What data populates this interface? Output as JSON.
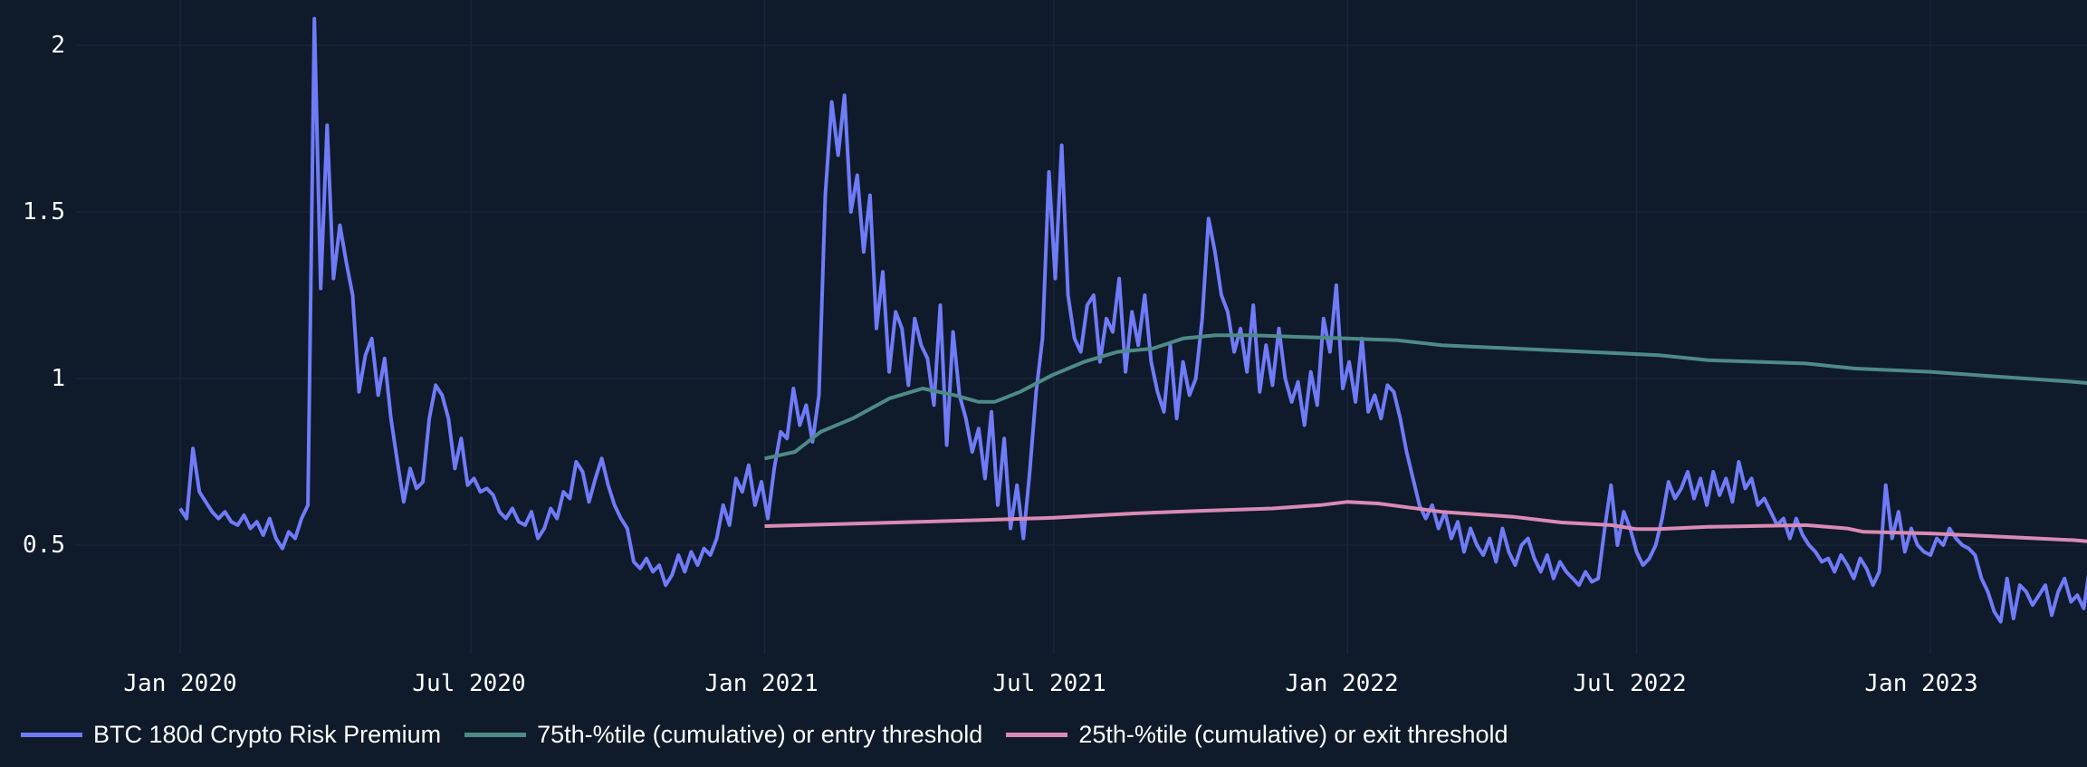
{
  "colors": {
    "background": "#0f1a2b",
    "grid": "#1a2638",
    "series_main": "#6f7bf7",
    "series_entry": "#4e8a86",
    "series_exit": "#d98bb5",
    "text": "#ffffff"
  },
  "legend": {
    "items": [
      {
        "label": "BTC 180d Crypto Risk Premium",
        "color": "#6f7bf7"
      },
      {
        "label": "75th-%tile (cumulative) or entry threshold",
        "color": "#4e8a86"
      },
      {
        "label": "25th-%tile (cumulative) or exit threshold",
        "color": "#d98bb5"
      }
    ]
  },
  "axes": {
    "y_ticks": [
      "2",
      "1.5",
      "1",
      "0.5"
    ],
    "x_ticks": [
      "Jan 2020",
      "Jul 2020",
      "Jan 2021",
      "Jul 2021",
      "Jan 2022",
      "Jul 2022",
      "Jan 2023"
    ]
  },
  "chart_data": {
    "type": "line",
    "title": "",
    "xlabel": "",
    "ylabel": "",
    "ylim": [
      0.16,
      2.13
    ],
    "xlim": [
      "2019-11-05",
      "2023-05-01"
    ],
    "grid": true,
    "legend_position": "bottom-left",
    "y_ticks": [
      0.5,
      1,
      1.5,
      2
    ],
    "x_ticks": [
      "2020-01-01",
      "2020-07-01",
      "2021-01-01",
      "2021-07-01",
      "2022-01-01",
      "2022-07-01",
      "2023-01-01"
    ],
    "series": [
      {
        "name": "BTC 180d Crypto Risk Premium",
        "x_start": "2020-01-01",
        "step_days": 4,
        "values": [
          0.61,
          0.58,
          0.79,
          0.66,
          0.63,
          0.6,
          0.58,
          0.6,
          0.57,
          0.56,
          0.59,
          0.55,
          0.57,
          0.53,
          0.58,
          0.52,
          0.49,
          0.54,
          0.52,
          0.58,
          0.62,
          2.08,
          1.27,
          1.76,
          1.3,
          1.46,
          1.35,
          1.25,
          0.96,
          1.07,
          1.12,
          0.95,
          1.06,
          0.88,
          0.75,
          0.63,
          0.73,
          0.67,
          0.69,
          0.88,
          0.98,
          0.95,
          0.88,
          0.73,
          0.82,
          0.68,
          0.7,
          0.66,
          0.67,
          0.65,
          0.6,
          0.58,
          0.61,
          0.57,
          0.56,
          0.6,
          0.52,
          0.55,
          0.61,
          0.58,
          0.66,
          0.64,
          0.75,
          0.72,
          0.63,
          0.7,
          0.76,
          0.68,
          0.62,
          0.58,
          0.55,
          0.45,
          0.43,
          0.46,
          0.42,
          0.44,
          0.38,
          0.41,
          0.47,
          0.42,
          0.48,
          0.44,
          0.49,
          0.47,
          0.52,
          0.62,
          0.56,
          0.7,
          0.66,
          0.74,
          0.62,
          0.69,
          0.58,
          0.73,
          0.84,
          0.82,
          0.97,
          0.86,
          0.92,
          0.81,
          0.95,
          1.55,
          1.83,
          1.67,
          1.85,
          1.5,
          1.61,
          1.38,
          1.55,
          1.15,
          1.32,
          1.02,
          1.2,
          1.15,
          0.98,
          1.18,
          1.1,
          1.06,
          0.92,
          1.22,
          0.8,
          1.14,
          0.95,
          0.88,
          0.78,
          0.85,
          0.7,
          0.9,
          0.62,
          0.82,
          0.55,
          0.68,
          0.52,
          0.72,
          0.96,
          1.12,
          1.62,
          1.3,
          1.7,
          1.25,
          1.12,
          1.08,
          1.22,
          1.25,
          1.05,
          1.18,
          1.14,
          1.3,
          1.02,
          1.2,
          1.1,
          1.25,
          1.05,
          0.96,
          0.9,
          1.1,
          0.88,
          1.05,
          0.95,
          1.0,
          1.18,
          1.48,
          1.38,
          1.25,
          1.2,
          1.08,
          1.15,
          1.02,
          1.22,
          0.96,
          1.1,
          0.98,
          1.15,
          1.0,
          0.93,
          0.99,
          0.86,
          1.02,
          0.92,
          1.18,
          1.08,
          1.28,
          0.97,
          1.05,
          0.93,
          1.12,
          0.9,
          0.95,
          0.88,
          0.98,
          0.96,
          0.88,
          0.78,
          0.7,
          0.62,
          0.58,
          0.62,
          0.55,
          0.6,
          0.52,
          0.57,
          0.48,
          0.55,
          0.5,
          0.47,
          0.52,
          0.45,
          0.55,
          0.48,
          0.44,
          0.5,
          0.52,
          0.46,
          0.42,
          0.47,
          0.4,
          0.45,
          0.42,
          0.4,
          0.38,
          0.42,
          0.39,
          0.4,
          0.55,
          0.68,
          0.5,
          0.6,
          0.55,
          0.48,
          0.44,
          0.46,
          0.5,
          0.58,
          0.69,
          0.64,
          0.67,
          0.72,
          0.64,
          0.7,
          0.62,
          0.72,
          0.65,
          0.7,
          0.63,
          0.75,
          0.67,
          0.7,
          0.62,
          0.64,
          0.6,
          0.56,
          0.58,
          0.52,
          0.58,
          0.53,
          0.5,
          0.48,
          0.45,
          0.46,
          0.42,
          0.47,
          0.44,
          0.4,
          0.46,
          0.43,
          0.38,
          0.42,
          0.68,
          0.52,
          0.6,
          0.48,
          0.55,
          0.5,
          0.48,
          0.47,
          0.52,
          0.5,
          0.55,
          0.52,
          0.5,
          0.49,
          0.47,
          0.4,
          0.36,
          0.3,
          0.27,
          0.4,
          0.28,
          0.38,
          0.36,
          0.32,
          0.35,
          0.38,
          0.29,
          0.36,
          0.4,
          0.33,
          0.35,
          0.31,
          0.44,
          0.38,
          0.52,
          0.46,
          0.48,
          0.43,
          0.44
        ]
      },
      {
        "name": "75th-%tile (cumulative) or entry threshold",
        "points": [
          [
            "2021-01-01",
            0.76
          ],
          [
            "2021-01-20",
            0.78
          ],
          [
            "2021-02-05",
            0.84
          ],
          [
            "2021-02-25",
            0.88
          ],
          [
            "2021-03-20",
            0.94
          ],
          [
            "2021-04-10",
            0.97
          ],
          [
            "2021-04-30",
            0.95
          ],
          [
            "2021-05-15",
            0.93
          ],
          [
            "2021-05-25",
            0.93
          ],
          [
            "2021-06-10",
            0.96
          ],
          [
            "2021-06-30",
            1.01
          ],
          [
            "2021-07-20",
            1.05
          ],
          [
            "2021-08-10",
            1.08
          ],
          [
            "2021-09-01",
            1.09
          ],
          [
            "2021-09-20",
            1.12
          ],
          [
            "2021-10-10",
            1.13
          ],
          [
            "2021-11-01",
            1.13
          ],
          [
            "2021-12-01",
            1.125
          ],
          [
            "2022-01-01",
            1.12
          ],
          [
            "2022-02-01",
            1.115
          ],
          [
            "2022-03-01",
            1.1
          ],
          [
            "2022-04-15",
            1.09
          ],
          [
            "2022-06-01",
            1.08
          ],
          [
            "2022-07-15",
            1.07
          ],
          [
            "2022-08-15",
            1.055
          ],
          [
            "2022-10-15",
            1.045
          ],
          [
            "2022-11-15",
            1.03
          ],
          [
            "2023-01-01",
            1.02
          ],
          [
            "2023-02-15",
            1.005
          ],
          [
            "2023-04-01",
            0.99
          ],
          [
            "2023-04-25",
            0.98
          ]
        ]
      },
      {
        "name": "25th-%tile (cumulative) or exit threshold",
        "points": [
          [
            "2021-01-01",
            0.557
          ],
          [
            "2021-03-01",
            0.565
          ],
          [
            "2021-05-15",
            0.575
          ],
          [
            "2021-07-01",
            0.582
          ],
          [
            "2021-08-20",
            0.595
          ],
          [
            "2021-10-01",
            0.603
          ],
          [
            "2021-11-15",
            0.61
          ],
          [
            "2021-12-15",
            0.62
          ],
          [
            "2022-01-01",
            0.63
          ],
          [
            "2022-01-20",
            0.625
          ],
          [
            "2022-03-01",
            0.6
          ],
          [
            "2022-04-15",
            0.585
          ],
          [
            "2022-05-15",
            0.568
          ],
          [
            "2022-06-15",
            0.56
          ],
          [
            "2022-07-01",
            0.548
          ],
          [
            "2022-07-15",
            0.548
          ],
          [
            "2022-08-15",
            0.555
          ],
          [
            "2022-10-15",
            0.56
          ],
          [
            "2022-11-10",
            0.55
          ],
          [
            "2022-11-20",
            0.54
          ],
          [
            "2023-01-01",
            0.535
          ],
          [
            "2023-02-15",
            0.525
          ],
          [
            "2023-04-01",
            0.515
          ],
          [
            "2023-04-25",
            0.505
          ]
        ]
      }
    ]
  }
}
